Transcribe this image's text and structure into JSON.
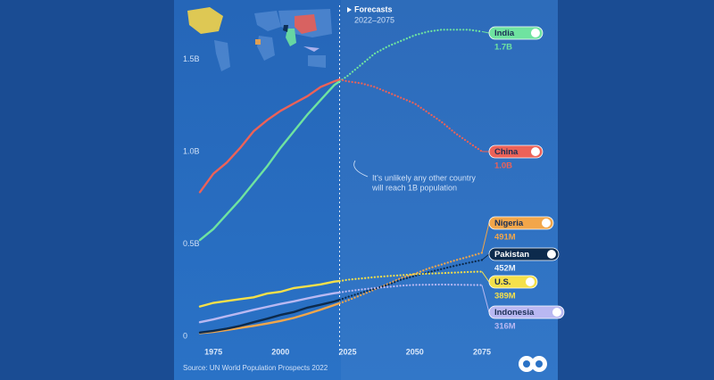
{
  "chart_data": {
    "type": "line",
    "forecast_label": "Forecasts",
    "forecast_range": "2022–2075",
    "forecast_start": 2022,
    "annotation": [
      "It’s unlikely any other country",
      "will reach 1B population"
    ],
    "source": "Source: UN World Population Prospects 2022",
    "x": [
      1970,
      1975,
      1980,
      1985,
      1990,
      1995,
      2000,
      2005,
      2010,
      2015,
      2020,
      2022,
      2025,
      2030,
      2035,
      2040,
      2045,
      2050,
      2055,
      2060,
      2065,
      2070,
      2075
    ],
    "xlim": [
      1965,
      2080
    ],
    "xticks": [
      1975,
      2000,
      2025,
      2050,
      2075
    ],
    "ylim": [
      0,
      1.8
    ],
    "yticks": [
      0,
      {
        "value": 0.5,
        "label": "0.5B"
      },
      {
        "value": 1,
        "label": "1.0B"
      },
      {
        "value": 1.5,
        "label": "1.5B"
      }
    ],
    "series": [
      {
        "name": "India",
        "color": "#6fe3a0",
        "values": [
          0.56,
          0.62,
          0.7,
          0.78,
          0.87,
          0.96,
          1.06,
          1.15,
          1.24,
          1.32,
          1.4,
          1.42,
          1.45,
          1.51,
          1.57,
          1.61,
          1.64,
          1.67,
          1.69,
          1.7,
          1.7,
          1.7,
          1.69
        ],
        "value_labels": [
          null,
          null,
          null,
          null,
          null,
          null,
          null,
          null,
          null,
          null,
          null,
          null,
          null,
          null,
          null,
          null,
          null,
          null,
          null,
          null,
          null,
          null,
          "1.7B"
        ]
      },
      {
        "name": "China",
        "color": "#ec6258",
        "values": [
          0.82,
          0.92,
          0.98,
          1.06,
          1.15,
          1.21,
          1.26,
          1.3,
          1.34,
          1.39,
          1.42,
          1.43,
          1.42,
          1.41,
          1.39,
          1.36,
          1.33,
          1.3,
          1.25,
          1.2,
          1.14,
          1.09,
          1.04
        ],
        "value_labels": [
          null,
          null,
          null,
          null,
          null,
          null,
          null,
          null,
          null,
          null,
          null,
          null,
          null,
          null,
          null,
          null,
          null,
          null,
          null,
          null,
          null,
          null,
          "1.0B"
        ]
      },
      {
        "name": "Nigeria",
        "color": "#f2a64a",
        "values": [
          0.056,
          0.063,
          0.073,
          0.084,
          0.095,
          0.108,
          0.122,
          0.138,
          0.16,
          0.183,
          0.208,
          0.218,
          0.233,
          0.262,
          0.292,
          0.323,
          0.355,
          0.377,
          0.406,
          0.428,
          0.45,
          0.47,
          0.491
        ],
        "value_labels": [
          null,
          null,
          null,
          null,
          null,
          null,
          null,
          null,
          null,
          null,
          null,
          null,
          null,
          null,
          null,
          null,
          null,
          null,
          null,
          null,
          null,
          null,
          "491M"
        ]
      },
      {
        "name": "Pakistan",
        "color": "#0c2a4c",
        "values": [
          0.059,
          0.068,
          0.08,
          0.095,
          0.115,
          0.134,
          0.154,
          0.17,
          0.194,
          0.21,
          0.227,
          0.236,
          0.252,
          0.274,
          0.296,
          0.318,
          0.346,
          0.366,
          0.385,
          0.403,
          0.421,
          0.437,
          0.452
        ],
        "value_labels": [
          null,
          null,
          null,
          null,
          null,
          null,
          null,
          null,
          null,
          null,
          null,
          null,
          null,
          null,
          null,
          null,
          null,
          null,
          null,
          null,
          null,
          null,
          "452M"
        ]
      },
      {
        "name": "U.S.",
        "color": "#f5e04a",
        "values": [
          0.2,
          0.22,
          0.23,
          0.24,
          0.25,
          0.27,
          0.28,
          0.3,
          0.31,
          0.32,
          0.335,
          0.338,
          0.345,
          0.352,
          0.359,
          0.365,
          0.37,
          0.375,
          0.378,
          0.381,
          0.384,
          0.387,
          0.389
        ],
        "value_labels": [
          null,
          null,
          null,
          null,
          null,
          null,
          null,
          null,
          null,
          null,
          null,
          null,
          null,
          null,
          null,
          null,
          null,
          null,
          null,
          null,
          null,
          null,
          "389M"
        ]
      },
      {
        "name": "Indonesia",
        "color": "#b9b8f2",
        "values": [
          0.115,
          0.13,
          0.148,
          0.165,
          0.182,
          0.198,
          0.214,
          0.228,
          0.244,
          0.259,
          0.272,
          0.276,
          0.283,
          0.292,
          0.3,
          0.306,
          0.313,
          0.317,
          0.318,
          0.319,
          0.318,
          0.317,
          0.316
        ],
        "value_labels": [
          null,
          null,
          null,
          null,
          null,
          null,
          null,
          null,
          null,
          null,
          null,
          null,
          null,
          null,
          null,
          null,
          null,
          null,
          null,
          null,
          null,
          null,
          "316M"
        ]
      }
    ]
  }
}
